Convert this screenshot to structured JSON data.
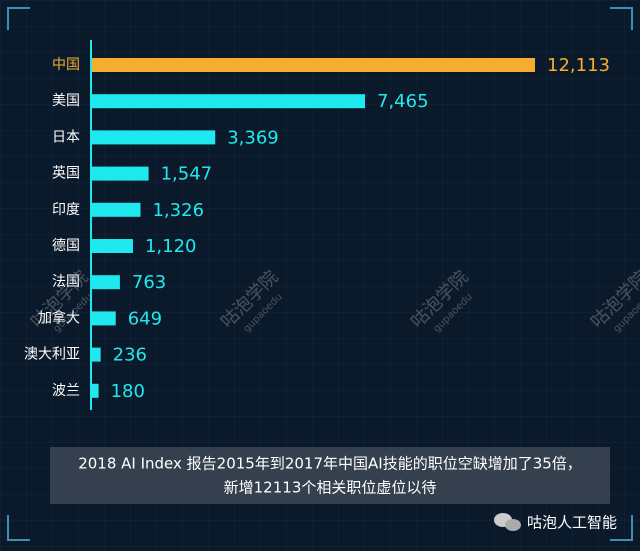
{
  "chart_data": {
    "type": "hbar",
    "categories": [
      "中国",
      "美国",
      "日本",
      "英国",
      "印度",
      "德国",
      "法国",
      "加拿大",
      "澳大利亚",
      "波兰"
    ],
    "values": [
      12113,
      7465,
      3369,
      1547,
      1326,
      1120,
      763,
      649,
      236,
      180
    ],
    "value_labels": [
      "12,113",
      "7,465",
      "3,369",
      "1,547",
      "1,326",
      "1,120",
      "763",
      "649",
      "236",
      "180"
    ],
    "colors": [
      "#f5ad2f",
      "#1fe9ef",
      "#1fe9ef",
      "#1fe9ef",
      "#1fe9ef",
      "#1fe9ef",
      "#1fe9ef",
      "#1fe9ef",
      "#1fe9ef",
      "#1fe9ef"
    ],
    "caption": [
      "2018 AI Index 报告2015年到2017年中国AI技能的职位空缺增加了35倍，",
      "新增12113个相关职位虚位以待"
    ],
    "watermark": "咕泡学院",
    "watermark_sub": "gupaoedu",
    "logo": "咕泡人工智能"
  }
}
